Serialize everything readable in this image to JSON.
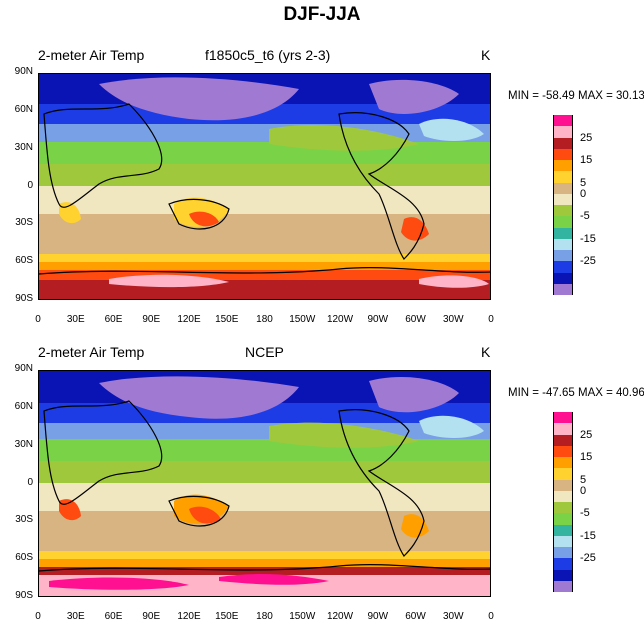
{
  "figure_title": "DJF-JJA",
  "chart_data": [
    {
      "type": "heatmap",
      "title": "2-meter Air Temp",
      "subtitle": "f1850c5_t6 (yrs 2-3)",
      "units": "K",
      "min_label": "MIN = -58.49 MAX =  30.13",
      "min": -58.49,
      "max": 30.13,
      "y_ticks": [
        "90N",
        "60N",
        "30N",
        "0",
        "30S",
        "60S",
        "90S"
      ],
      "x_ticks": [
        "0",
        "30E",
        "60E",
        "90E",
        "120E",
        "150E",
        "180",
        "150W",
        "120W",
        "90W",
        "60W",
        "30W",
        "0"
      ],
      "colorbar_levels": [
        -30,
        -25,
        -20,
        -15,
        -10,
        -5,
        0,
        5,
        10,
        15,
        20,
        25,
        30
      ],
      "colorbar_labels": [
        "25",
        "15",
        "5",
        "0",
        "-5",
        "-15",
        "-25"
      ],
      "colorbar_colors": [
        "#ff1090",
        "#ffb4c8",
        "#b41e23",
        "#ff4a10",
        "#ffa000",
        "#ffd230",
        "#d7b482",
        "#f0e6c0",
        "#a0c83c",
        "#7ad246",
        "#32b4a0",
        "#b4e1f0",
        "#78a0e6",
        "#1e3ce6",
        "#0a14b4",
        "#a07ad2"
      ]
    },
    {
      "type": "heatmap",
      "title": "2-meter Air Temp",
      "subtitle": "NCEP",
      "units": "K",
      "min_label": "MIN = -47.65 MAX =  40.96",
      "min": -47.65,
      "max": 40.96,
      "y_ticks": [
        "90N",
        "60N",
        "30N",
        "0",
        "30S",
        "60S",
        "90S"
      ],
      "x_ticks": [
        "0",
        "30E",
        "60E",
        "90E",
        "120E",
        "150E",
        "180",
        "150W",
        "120W",
        "90W",
        "60W",
        "30W",
        "0"
      ],
      "colorbar_levels": [
        -30,
        -25,
        -20,
        -15,
        -10,
        -5,
        0,
        5,
        10,
        15,
        20,
        25,
        30
      ],
      "colorbar_labels": [
        "25",
        "15",
        "5",
        "0",
        "-5",
        "-15",
        "-25"
      ],
      "colorbar_colors": [
        "#ff1090",
        "#ffb4c8",
        "#b41e23",
        "#ff4a10",
        "#ffa000",
        "#ffd230",
        "#d7b482",
        "#f0e6c0",
        "#a0c83c",
        "#7ad246",
        "#32b4a0",
        "#b4e1f0",
        "#78a0e6",
        "#1e3ce6",
        "#0a14b4",
        "#a07ad2"
      ]
    }
  ]
}
